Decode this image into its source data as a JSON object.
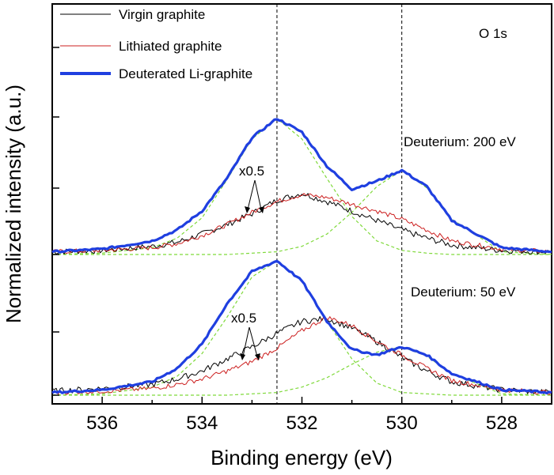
{
  "chart_data": {
    "type": "line",
    "xlabel": "Binding energy (eV)",
    "ylabel": "Normalized intensity (a.u.)",
    "xlim": [
      537,
      527
    ],
    "x_reversed": true,
    "xticks": [
      536,
      534,
      532,
      530,
      528
    ],
    "xtick_labels": [
      "536",
      "534",
      "532",
      "530",
      "528"
    ],
    "panel_label": "O 1s",
    "legend": {
      "placement": "top-left",
      "entries": [
        {
          "name": "Virgin graphite",
          "color": "#000000"
        },
        {
          "name": "Lithiated graphite",
          "color": "#cc1f1f"
        },
        {
          "name": "Deuterated Li-graphite",
          "color": "#1f3fe0"
        }
      ]
    },
    "reference_lines_ev": [
      532.5,
      530.0
    ],
    "colors": {
      "virgin": "#000000",
      "lithiated": "#cc1f1f",
      "deuterated": "#1f3fe0",
      "fit": "#7fd93a"
    },
    "panels": [
      {
        "label": "Deuterium: 200 eV",
        "scale_annotation": "x0.5",
        "x": [
          537.0,
          536.0,
          535.0,
          534.5,
          534.0,
          533.5,
          533.0,
          532.5,
          532.0,
          531.5,
          531.0,
          530.5,
          530.0,
          529.5,
          529.0,
          528.0,
          527.0
        ],
        "series": [
          {
            "name": "Virgin graphite",
            "values": [
              0.02,
              0.03,
              0.06,
              0.09,
              0.15,
              0.22,
              0.3,
              0.4,
              0.45,
              0.39,
              0.32,
              0.25,
              0.18,
              0.12,
              0.07,
              0.03,
              0.02
            ]
          },
          {
            "name": "Lithiated graphite",
            "values": [
              0.02,
              0.03,
              0.05,
              0.08,
              0.14,
              0.22,
              0.31,
              0.39,
              0.44,
              0.42,
              0.37,
              0.32,
              0.26,
              0.18,
              0.1,
              0.04,
              0.02
            ]
          },
          {
            "name": "Deuterated Li-graphite",
            "values": [
              0.02,
              0.04,
              0.1,
              0.18,
              0.32,
              0.56,
              0.86,
              1.0,
              0.9,
              0.65,
              0.48,
              0.54,
              0.62,
              0.5,
              0.25,
              0.05,
              0.02
            ]
          }
        ],
        "fit_components": [
          {
            "center": 532.5,
            "values": [
              0.0,
              0.01,
              0.05,
              0.12,
              0.27,
              0.55,
              0.85,
              1.0,
              0.85,
              0.56,
              0.28,
              0.1,
              0.03,
              0.01,
              0.0,
              0.0,
              0.0
            ]
          },
          {
            "center": 530.0,
            "values": [
              0.0,
              0.0,
              0.0,
              0.0,
              0.0,
              0.0,
              0.01,
              0.02,
              0.06,
              0.15,
              0.31,
              0.5,
              0.62,
              0.49,
              0.26,
              0.02,
              0.0
            ]
          }
        ]
      },
      {
        "label": "Deuterium: 50 eV",
        "scale_annotation": "x0.5",
        "x": [
          537.0,
          536.0,
          535.0,
          534.5,
          534.0,
          533.5,
          533.0,
          532.5,
          532.0,
          531.5,
          531.0,
          530.5,
          530.0,
          529.5,
          529.0,
          528.0,
          527.0
        ],
        "series": [
          {
            "name": "Virgin graphite",
            "values": [
              0.03,
              0.05,
              0.08,
              0.12,
              0.18,
              0.27,
              0.36,
              0.46,
              0.55,
              0.57,
              0.5,
              0.4,
              0.28,
              0.18,
              0.1,
              0.04,
              0.02
            ]
          },
          {
            "name": "Lithiated graphite",
            "values": [
              0.02,
              0.03,
              0.05,
              0.08,
              0.12,
              0.18,
              0.25,
              0.35,
              0.48,
              0.58,
              0.52,
              0.4,
              0.3,
              0.2,
              0.11,
              0.04,
              0.02
            ]
          },
          {
            "name": "Deuterated Li-graphite",
            "values": [
              0.02,
              0.04,
              0.1,
              0.2,
              0.38,
              0.68,
              0.92,
              1.0,
              0.85,
              0.55,
              0.34,
              0.3,
              0.36,
              0.3,
              0.16,
              0.04,
              0.02
            ]
          }
        ],
        "fit_components": [
          {
            "center": 532.5,
            "values": [
              0.0,
              0.01,
              0.06,
              0.14,
              0.31,
              0.58,
              0.88,
              1.0,
              0.85,
              0.55,
              0.27,
              0.09,
              0.02,
              0.01,
              0.0,
              0.0,
              0.0
            ]
          },
          {
            "center": 530.0,
            "values": [
              0.0,
              0.0,
              0.0,
              0.0,
              0.0,
              0.0,
              0.01,
              0.02,
              0.06,
              0.13,
              0.23,
              0.32,
              0.36,
              0.29,
              0.16,
              0.01,
              0.0
            ]
          }
        ]
      }
    ]
  }
}
